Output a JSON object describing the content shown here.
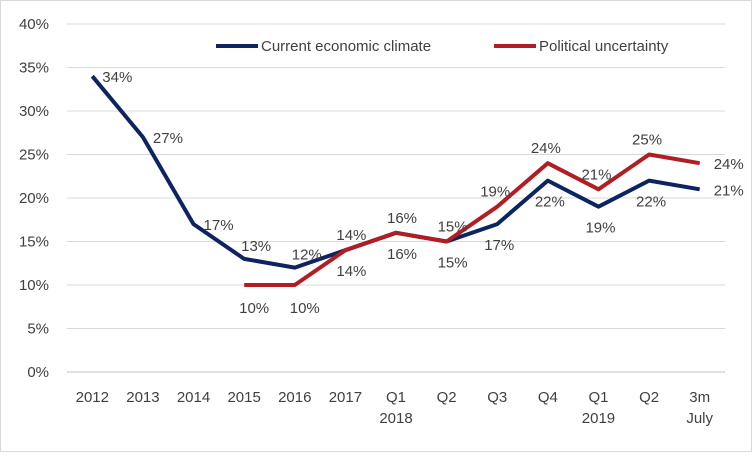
{
  "chart_data": {
    "type": "line",
    "categories": [
      "2012",
      "2013",
      "2014",
      "2015",
      "2016",
      "2017",
      "Q1 2018",
      "Q2",
      "Q3",
      "Q4",
      "Q1 2019",
      "Q2",
      "3m July"
    ],
    "category_lines": [
      [
        "2012"
      ],
      [
        "2013"
      ],
      [
        "2014"
      ],
      [
        "2015"
      ],
      [
        "2016"
      ],
      [
        "2017"
      ],
      [
        "Q1",
        "2018"
      ],
      [
        "Q2"
      ],
      [
        "Q3"
      ],
      [
        "Q4"
      ],
      [
        "Q1",
        "2019"
      ],
      [
        "Q2"
      ],
      [
        "3m",
        "July"
      ]
    ],
    "series": [
      {
        "name": "Current economic climate",
        "color": "#0c2461",
        "values": [
          34,
          27,
          17,
          13,
          12,
          14,
          16,
          15,
          17,
          22,
          19,
          22,
          21
        ],
        "labels": [
          "34%",
          "27%",
          "17%",
          "13%",
          "12%",
          "14%",
          "16%",
          "15%",
          "17%",
          "22%",
          "19%",
          "22%",
          "21%"
        ]
      },
      {
        "name": "Political uncertainty",
        "color": "#b01e23",
        "values": [
          null,
          null,
          null,
          10,
          10,
          14,
          16,
          15,
          19,
          24,
          21,
          25,
          24
        ],
        "labels": [
          "",
          "",
          "",
          "10%",
          "10%",
          "14%",
          "16%",
          "15%",
          "19%",
          "24%",
          "21%",
          "25%",
          "24%"
        ]
      }
    ],
    "ylim": [
      0,
      40
    ],
    "yticks": [
      0,
      5,
      10,
      15,
      20,
      25,
      30,
      35,
      40
    ],
    "ytick_labels": [
      "0%",
      "5%",
      "10%",
      "15%",
      "20%",
      "25%",
      "30%",
      "35%",
      "40%"
    ],
    "grid": true,
    "legend": "top-right"
  }
}
